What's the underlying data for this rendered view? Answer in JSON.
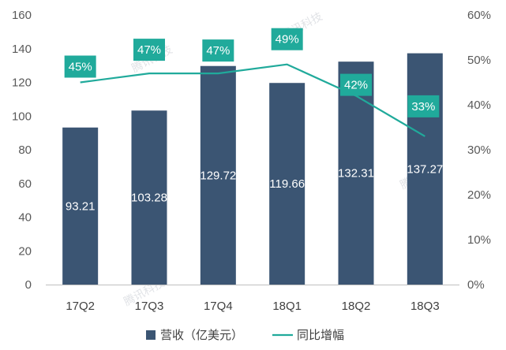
{
  "chart_data": {
    "type": "bar",
    "categories": [
      "17Q2",
      "17Q3",
      "17Q4",
      "18Q1",
      "18Q2",
      "18Q3"
    ],
    "series": [
      {
        "name": "营收（亿美元）",
        "kind": "bar",
        "axis": "left",
        "values": [
          93.21,
          103.28,
          129.72,
          119.66,
          132.31,
          137.27
        ],
        "labels": [
          "93.21",
          "103.28",
          "129.72",
          "119.66",
          "132.31",
          "137.27"
        ]
      },
      {
        "name": "同比增幅",
        "kind": "line",
        "axis": "right",
        "values": [
          45,
          47,
          47,
          49,
          42,
          33
        ],
        "labels": [
          "45%",
          "47%",
          "47%",
          "49%",
          "42%",
          "33%"
        ]
      }
    ],
    "y_left": {
      "range": [
        0,
        160
      ],
      "ticks": [
        0,
        20,
        40,
        60,
        80,
        100,
        120,
        140,
        160
      ],
      "tick_labels": [
        "0",
        "20",
        "40",
        "60",
        "80",
        "100",
        "120",
        "140",
        "160"
      ]
    },
    "y_right": {
      "range": [
        0,
        60
      ],
      "ticks": [
        0,
        10,
        20,
        30,
        40,
        50,
        60
      ],
      "tick_labels": [
        "0%",
        "10%",
        "20%",
        "30%",
        "40%",
        "50%",
        "60%"
      ]
    },
    "legend": {
      "position": "bottom"
    },
    "watermark": "腾讯科技",
    "colors": {
      "bar": "#3b5573",
      "line": "#20aa9b",
      "label_box": "#20aa9b",
      "axis": "#bfbfbf"
    }
  }
}
